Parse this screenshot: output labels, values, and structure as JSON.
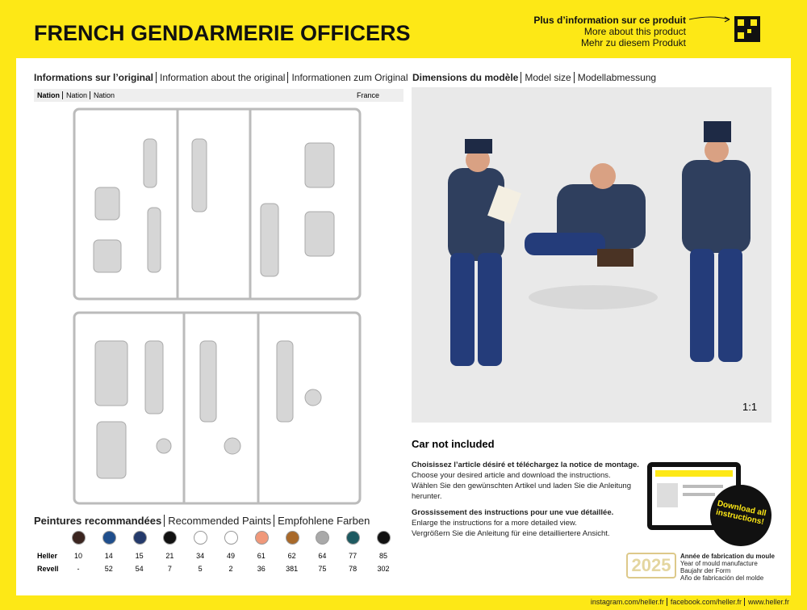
{
  "header": {
    "title": "FRENCH GENDARMERIE OFFICERS",
    "more_info": [
      "Plus d’information sur ce produit",
      "More about this product",
      "Mehr zu diesem Produkt"
    ]
  },
  "original": {
    "heading": [
      "Informations sur l’original",
      "Information about the original",
      "Informationen zum Original"
    ],
    "nation_labels": [
      "Nation",
      "Nation",
      "Nation"
    ],
    "nation": "France"
  },
  "paints": {
    "heading": [
      "Peintures recommandées",
      "Recommended Paints",
      "Empfohlene Farben"
    ],
    "colors": [
      "#3b2520",
      "#1f4e8c",
      "#243a6b",
      "#111111",
      "#ffffff",
      "#ffffff",
      "#f0987a",
      "#a8692a",
      "#a9a9a9",
      "#1d5960",
      "#111111"
    ],
    "rows": [
      {
        "label": "Heller",
        "values": [
          10,
          14,
          15,
          21,
          34,
          49,
          61,
          62,
          64,
          77,
          85
        ]
      },
      {
        "label": "Revell",
        "values": [
          "-",
          52,
          54,
          7,
          5,
          2,
          36,
          381,
          75,
          78,
          302
        ]
      }
    ]
  },
  "model": {
    "heading": [
      "Dimensions du modèle",
      "Model size",
      "Modellabmessung"
    ],
    "scale": "1:1",
    "note": "Car not included"
  },
  "instructions": {
    "download": [
      "Choisissez l’article désiré et téléchargez la notice de montage.",
      "Choose your desired article and download the instructions.",
      "Wählen Sie den gewünschten Artikel und laden Sie die Anleitung herunter."
    ],
    "enlarge": [
      "Grossissement des instructions pour une vue détaillée.",
      "Enlarge the instructions for a more detailed view.",
      "Vergrößern Sie die Anleitung für eine detailliertere Ansicht."
    ],
    "badge": "Download all instructions!"
  },
  "mould": {
    "year": "2025",
    "labels": [
      "Année de fabrication du moule",
      "Year of mould manufacture",
      "Baujahr der Form",
      "Año de fabricación del molde"
    ]
  },
  "footer": [
    "instagram.com/heller.fr",
    "facebook.com/heller.fr",
    "www.heller.fr"
  ]
}
